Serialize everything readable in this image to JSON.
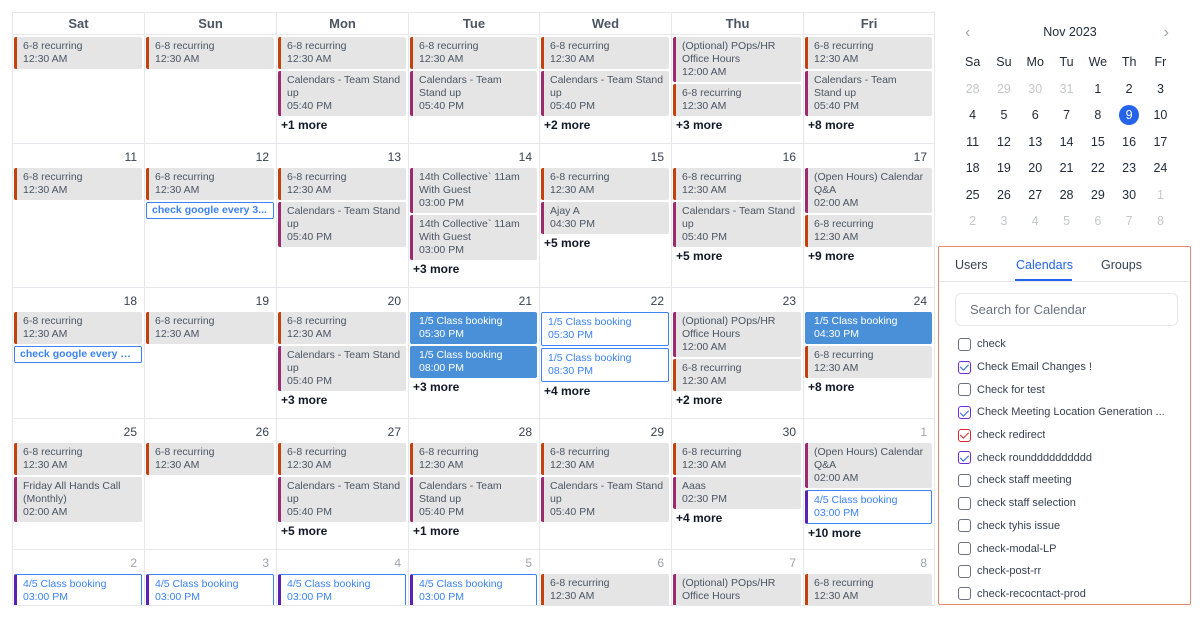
{
  "weekdays": [
    "Sat",
    "Sun",
    "Mon",
    "Tue",
    "Wed",
    "Thu",
    "Fri"
  ],
  "weeks": [
    {
      "days": [
        {
          "day": "",
          "other": false,
          "events": [
            {
              "title": "6-8 recurring",
              "time": "12:30 AM",
              "color": "orange"
            }
          ],
          "more": ""
        },
        {
          "day": "",
          "other": false,
          "events": [
            {
              "title": "6-8 recurring",
              "time": "12:30 AM",
              "color": "orange"
            }
          ],
          "more": ""
        },
        {
          "day": "",
          "other": false,
          "events": [
            {
              "title": "6-8 recurring",
              "time": "12:30 AM",
              "color": "orange"
            },
            {
              "title": "Calendars - Team Stand up",
              "time": "05:40 PM",
              "color": "purple"
            }
          ],
          "more": "+1 more"
        },
        {
          "day": "",
          "other": false,
          "events": [
            {
              "title": "6-8 recurring",
              "time": "12:30 AM",
              "color": "orange"
            },
            {
              "title": "Calendars - Team Stand up",
              "time": "05:40 PM",
              "color": "purple"
            }
          ],
          "more": ""
        },
        {
          "day": "",
          "other": false,
          "events": [
            {
              "title": "6-8 recurring",
              "time": "12:30 AM",
              "color": "orange"
            },
            {
              "title": "Calendars - Team Stand up",
              "time": "05:40 PM",
              "color": "purple"
            }
          ],
          "more": "+2 more"
        },
        {
          "day": "",
          "other": false,
          "events": [
            {
              "title": "(Optional) POps/HR Office Hours",
              "time": "12:00 AM",
              "color": "purple"
            },
            {
              "title": "6-8 recurring",
              "time": "12:30 AM",
              "color": "orange"
            }
          ],
          "more": "+3 more"
        },
        {
          "day": "",
          "other": false,
          "events": [
            {
              "title": "6-8 recurring",
              "time": "12:30 AM",
              "color": "orange"
            },
            {
              "title": "Calendars - Team Stand up",
              "time": "05:40 PM",
              "color": "purple"
            }
          ],
          "more": "+8 more"
        }
      ]
    },
    {
      "days": [
        {
          "day": "11",
          "other": false,
          "events": [
            {
              "title": "6-8 recurring",
              "time": "12:30 AM",
              "color": "orange"
            }
          ],
          "more": ""
        },
        {
          "day": "12",
          "other": false,
          "events": [
            {
              "title": "6-8 recurring",
              "time": "12:30 AM",
              "color": "orange"
            },
            {
              "chip": "check google every 3..."
            }
          ],
          "more": ""
        },
        {
          "day": "13",
          "other": false,
          "events": [
            {
              "title": "6-8 recurring",
              "time": "12:30 AM",
              "color": "orange"
            },
            {
              "title": "Calendars - Team Stand up",
              "time": "05:40 PM",
              "color": "purple"
            }
          ],
          "more": ""
        },
        {
          "day": "14",
          "other": false,
          "events": [
            {
              "title": "14th Collective` 11am With Guest",
              "time": "03:00 PM",
              "color": "purple"
            },
            {
              "title": "14th Collective` 11am With Guest",
              "time": "03:00 PM",
              "color": "purple"
            }
          ],
          "more": "+3 more"
        },
        {
          "day": "15",
          "other": false,
          "events": [
            {
              "title": "6-8 recurring",
              "time": "12:30 AM",
              "color": "orange"
            },
            {
              "title": "Ajay A",
              "time": "04:30 PM",
              "color": "purple"
            }
          ],
          "more": "+5 more"
        },
        {
          "day": "16",
          "other": false,
          "events": [
            {
              "title": "6-8 recurring",
              "time": "12:30 AM",
              "color": "orange"
            },
            {
              "title": "Calendars - Team Stand up",
              "time": "05:40 PM",
              "color": "purple"
            }
          ],
          "more": "+5 more"
        },
        {
          "day": "17",
          "other": false,
          "events": [
            {
              "title": "(Open Hours) Calendar Q&A",
              "time": "02:00 AM",
              "color": "purple"
            },
            {
              "title": "6-8 recurring",
              "time": "12:30 AM",
              "color": "orange"
            }
          ],
          "more": "+9 more"
        }
      ]
    },
    {
      "days": [
        {
          "day": "18",
          "other": false,
          "events": [
            {
              "title": "6-8 recurring",
              "time": "12:30 AM",
              "color": "orange"
            },
            {
              "chip": "check google every 3 ..."
            }
          ],
          "more": ""
        },
        {
          "day": "19",
          "other": false,
          "events": [
            {
              "title": "6-8 recurring",
              "time": "12:30 AM",
              "color": "orange"
            }
          ],
          "more": ""
        },
        {
          "day": "20",
          "other": false,
          "events": [
            {
              "title": "6-8 recurring",
              "time": "12:30 AM",
              "color": "orange"
            },
            {
              "title": "Calendars - Team Stand up",
              "time": "05:40 PM",
              "color": "purple"
            }
          ],
          "more": "+3 more"
        },
        {
          "day": "21",
          "other": false,
          "events": [
            {
              "title": "1/5  Class booking",
              "time": "05:30 PM",
              "style": "solid"
            },
            {
              "title": "1/5  Class booking",
              "time": "08:00 PM",
              "style": "solid"
            }
          ],
          "more": "+3 more"
        },
        {
          "day": "22",
          "other": false,
          "events": [
            {
              "title": "1/5  Class booking",
              "time": "05:30 PM",
              "style": "outline-plain"
            },
            {
              "title": "1/5  Class booking",
              "time": "08:30 PM",
              "style": "outline-plain"
            }
          ],
          "more": "+4 more"
        },
        {
          "day": "23",
          "other": false,
          "events": [
            {
              "title": "(Optional) POps/HR Office Hours",
              "time": "12:00 AM",
              "color": "purple"
            },
            {
              "title": "6-8 recurring",
              "time": "12:30 AM",
              "color": "orange"
            }
          ],
          "more": "+2 more"
        },
        {
          "day": "24",
          "other": false,
          "events": [
            {
              "title": "1/5  Class booking",
              "time": "04:30 PM",
              "style": "solid"
            },
            {
              "title": "6-8 recurring",
              "time": "12:30 AM",
              "color": "orange"
            }
          ],
          "more": "+8 more"
        }
      ]
    },
    {
      "days": [
        {
          "day": "25",
          "other": false,
          "events": [
            {
              "title": "6-8 recurring",
              "time": "12:30 AM",
              "color": "orange"
            },
            {
              "title": "Friday All Hands Call (Monthly)",
              "time": "02:00 AM",
              "color": "purple"
            }
          ],
          "more": ""
        },
        {
          "day": "26",
          "other": false,
          "events": [
            {
              "title": "6-8 recurring",
              "time": "12:30 AM",
              "color": "orange"
            }
          ],
          "more": ""
        },
        {
          "day": "27",
          "other": false,
          "events": [
            {
              "title": "6-8 recurring",
              "time": "12:30 AM",
              "color": "orange"
            },
            {
              "title": "Calendars - Team Stand up",
              "time": "05:40 PM",
              "color": "purple"
            }
          ],
          "more": "+5 more"
        },
        {
          "day": "28",
          "other": false,
          "events": [
            {
              "title": "6-8 recurring",
              "time": "12:30 AM",
              "color": "orange"
            },
            {
              "title": "Calendars - Team Stand up",
              "time": "05:40 PM",
              "color": "purple"
            }
          ],
          "more": "+1 more"
        },
        {
          "day": "29",
          "other": false,
          "events": [
            {
              "title": "6-8 recurring",
              "time": "12:30 AM",
              "color": "orange"
            },
            {
              "title": "Calendars - Team Stand up",
              "time": "05:40 PM",
              "color": "purple"
            }
          ],
          "more": ""
        },
        {
          "day": "30",
          "other": false,
          "events": [
            {
              "title": "6-8 recurring",
              "time": "12:30 AM",
              "color": "orange"
            },
            {
              "title": "Aaas",
              "time": "02:30 PM",
              "color": "purple"
            }
          ],
          "more": "+4 more"
        },
        {
          "day": "1",
          "other": true,
          "events": [
            {
              "title": "(Open Hours) Calendar Q&A",
              "time": "02:00 AM",
              "color": "purple"
            },
            {
              "title": "4/5  Class booking",
              "time": "03:00 PM",
              "style": "outline"
            }
          ],
          "more": "+10 more"
        }
      ]
    },
    {
      "days": [
        {
          "day": "2",
          "other": true,
          "events": [
            {
              "title": "4/5  Class booking",
              "time": "03:00 PM",
              "style": "outline"
            }
          ],
          "more": ""
        },
        {
          "day": "3",
          "other": true,
          "events": [
            {
              "title": "4/5  Class booking",
              "time": "03:00 PM",
              "style": "outline"
            }
          ],
          "more": ""
        },
        {
          "day": "4",
          "other": true,
          "events": [
            {
              "title": "4/5  Class booking",
              "time": "03:00 PM",
              "style": "outline"
            }
          ],
          "more": ""
        },
        {
          "day": "5",
          "other": true,
          "events": [
            {
              "title": "4/5  Class booking",
              "time": "03:00 PM",
              "style": "outline"
            }
          ],
          "more": ""
        },
        {
          "day": "6",
          "other": true,
          "events": [
            {
              "title": "6-8 recurring",
              "time": "12:30 AM",
              "color": "orange"
            }
          ],
          "more": ""
        },
        {
          "day": "7",
          "other": true,
          "events": [
            {
              "title": "(Optional) POps/HR Office Hours",
              "time": "",
              "color": "purple"
            }
          ],
          "more": ""
        },
        {
          "day": "8",
          "other": true,
          "events": [
            {
              "title": "6-8 recurring",
              "time": "12:30 AM",
              "color": "orange"
            }
          ],
          "more": ""
        }
      ]
    }
  ],
  "mini": {
    "prev_icon": "‹",
    "next_icon": "›",
    "title": "Nov 2023",
    "weekdays": [
      "Sa",
      "Su",
      "Mo",
      "Tu",
      "We",
      "Th",
      "Fr"
    ],
    "weeks": [
      [
        {
          "d": "28",
          "o": true
        },
        {
          "d": "29",
          "o": true
        },
        {
          "d": "30",
          "o": true
        },
        {
          "d": "31",
          "o": true
        },
        {
          "d": "1"
        },
        {
          "d": "2"
        },
        {
          "d": "3"
        }
      ],
      [
        {
          "d": "4"
        },
        {
          "d": "5"
        },
        {
          "d": "6"
        },
        {
          "d": "7"
        },
        {
          "d": "8"
        },
        {
          "d": "9",
          "today": true
        },
        {
          "d": "10"
        }
      ],
      [
        {
          "d": "11"
        },
        {
          "d": "12"
        },
        {
          "d": "13"
        },
        {
          "d": "14"
        },
        {
          "d": "15"
        },
        {
          "d": "16"
        },
        {
          "d": "17"
        }
      ],
      [
        {
          "d": "18"
        },
        {
          "d": "19"
        },
        {
          "d": "20"
        },
        {
          "d": "21"
        },
        {
          "d": "22"
        },
        {
          "d": "23"
        },
        {
          "d": "24"
        }
      ],
      [
        {
          "d": "25"
        },
        {
          "d": "26"
        },
        {
          "d": "27"
        },
        {
          "d": "28"
        },
        {
          "d": "29"
        },
        {
          "d": "30"
        },
        {
          "d": "1",
          "o": true
        }
      ],
      [
        {
          "d": "2",
          "o": true
        },
        {
          "d": "3",
          "o": true
        },
        {
          "d": "4",
          "o": true
        },
        {
          "d": "5",
          "o": true
        },
        {
          "d": "6",
          "o": true
        },
        {
          "d": "7",
          "o": true
        },
        {
          "d": "8",
          "o": true
        }
      ]
    ]
  },
  "panel": {
    "tabs": [
      "Users",
      "Calendars",
      "Groups"
    ],
    "active_tab": "Calendars",
    "search_placeholder": "Search for Calendar",
    "calendars": [
      {
        "label": "check",
        "checked": false
      },
      {
        "label": "Check Email Changes !",
        "checked": true
      },
      {
        "label": "Check for test",
        "checked": false
      },
      {
        "label": "Check Meeting Location Generation ...",
        "checked": true
      },
      {
        "label": "check redirect",
        "checked": true,
        "color": "red"
      },
      {
        "label": "check roundddddddddd",
        "checked": true
      },
      {
        "label": "check staff meeting",
        "checked": false
      },
      {
        "label": "check staff selection",
        "checked": false
      },
      {
        "label": "check tyhis issue",
        "checked": false
      },
      {
        "label": "check-modal-LP",
        "checked": false
      },
      {
        "label": "check-post-rr",
        "checked": false
      },
      {
        "label": "check-recocntact-prod",
        "checked": false
      }
    ]
  },
  "colors": {
    "accent": "#2563eb",
    "event_bg": "#e5e5e5",
    "orange_bar": "#c2410c",
    "purple_bar": "#9d2a6e",
    "class_booking_blue": "#4a90d9",
    "panel_border": "#e5876b"
  }
}
